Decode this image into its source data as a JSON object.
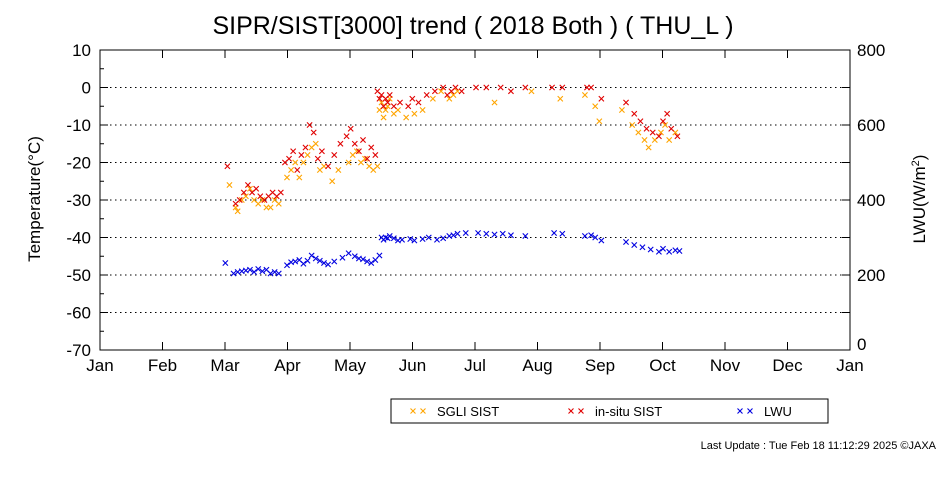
{
  "title": "SIPR/SIST[3000] trend ( 2018 Both ) ( THU_L )",
  "footer": "Last Update : Tue Feb 18 11:12:29 2025 ©JAXA",
  "colors": {
    "sgli": "#ffa500",
    "insitu": "#e00000",
    "lwu": "#0000e0",
    "grid": "#000000"
  },
  "chart_data": {
    "type": "scatter",
    "title": "SIPR/SIST[3000] trend ( 2018 Both ) ( THU_L )",
    "xlabel": "",
    "ylabel": "Temperature(°C)",
    "y2label_main": "LWU(W/m",
    "y2label_sup": "2",
    "y2label_end": ")",
    "ylim": [
      -70,
      10
    ],
    "y2lim": [
      0,
      800
    ],
    "xlim": [
      "2018-01-01",
      "2019-01-01"
    ],
    "x_ticks": [
      "Jan",
      "Feb",
      "Mar",
      "Apr",
      "May",
      "Jun",
      "Jul",
      "Aug",
      "Sep",
      "Oct",
      "Nov",
      "Dec",
      "Jan"
    ],
    "y_ticks": [
      10,
      0,
      -10,
      -20,
      -30,
      -40,
      -50,
      -60,
      -70
    ],
    "y2_ticks": [
      800,
      600,
      400,
      200,
      0
    ],
    "grid": "horizontal dotted",
    "legend": {
      "placement": "below",
      "entries": [
        "SGLI SIST",
        "in-situ SIST",
        "LWU"
      ]
    },
    "series": [
      {
        "name": "SGLI SIST",
        "axis": "left",
        "marker": "x",
        "points": [
          [
            "2018-03-05",
            -26
          ],
          [
            "2018-03-08",
            -32
          ],
          [
            "2018-03-09",
            -33
          ],
          [
            "2018-03-11",
            -30
          ],
          [
            "2018-03-13",
            -29
          ],
          [
            "2018-03-15",
            -27
          ],
          [
            "2018-03-17",
            -30
          ],
          [
            "2018-03-19",
            -31
          ],
          [
            "2018-03-21",
            -30
          ],
          [
            "2018-03-23",
            -32
          ],
          [
            "2018-03-25",
            -32
          ],
          [
            "2018-03-27",
            -30
          ],
          [
            "2018-03-29",
            -31
          ],
          [
            "2018-04-02",
            -24
          ],
          [
            "2018-04-04",
            -22
          ],
          [
            "2018-04-06",
            -20
          ],
          [
            "2018-04-08",
            -24
          ],
          [
            "2018-04-10",
            -20
          ],
          [
            "2018-04-12",
            -18
          ],
          [
            "2018-04-14",
            -16
          ],
          [
            "2018-04-16",
            -15
          ],
          [
            "2018-04-18",
            -22
          ],
          [
            "2018-04-20",
            -21
          ],
          [
            "2018-04-24",
            -25
          ],
          [
            "2018-04-27",
            -22
          ],
          [
            "2018-05-02",
            -20
          ],
          [
            "2018-05-04",
            -18
          ],
          [
            "2018-05-06",
            -17
          ],
          [
            "2018-05-08",
            -20
          ],
          [
            "2018-05-10",
            -19
          ],
          [
            "2018-05-12",
            -21
          ],
          [
            "2018-05-14",
            -22
          ],
          [
            "2018-05-16",
            -21
          ],
          [
            "2018-05-17",
            -6
          ],
          [
            "2018-05-18",
            -4
          ],
          [
            "2018-05-19",
            -8
          ],
          [
            "2018-05-20",
            -6
          ],
          [
            "2018-05-21",
            -5
          ],
          [
            "2018-05-22",
            -3
          ],
          [
            "2018-05-24",
            -7
          ],
          [
            "2018-05-26",
            -6
          ],
          [
            "2018-05-30",
            -8
          ],
          [
            "2018-06-03",
            -7
          ],
          [
            "2018-06-07",
            -6
          ],
          [
            "2018-06-12",
            -3
          ],
          [
            "2018-06-16",
            -1
          ],
          [
            "2018-06-20",
            -3
          ],
          [
            "2018-06-22",
            -2
          ],
          [
            "2018-06-24",
            -1
          ],
          [
            "2018-07-12",
            -4
          ],
          [
            "2018-07-30",
            -1
          ],
          [
            "2018-08-13",
            -3
          ],
          [
            "2018-08-25",
            -2
          ],
          [
            "2018-08-30",
            -5
          ],
          [
            "2018-09-01",
            -9
          ],
          [
            "2018-09-12",
            -6
          ],
          [
            "2018-09-17",
            -10
          ],
          [
            "2018-09-20",
            -12
          ],
          [
            "2018-09-23",
            -14
          ],
          [
            "2018-09-25",
            -16
          ],
          [
            "2018-09-28",
            -14
          ],
          [
            "2018-10-01",
            -12
          ],
          [
            "2018-10-03",
            -10
          ],
          [
            "2018-10-05",
            -14
          ],
          [
            "2018-10-08",
            -12
          ]
        ]
      },
      {
        "name": "in-situ SIST",
        "axis": "left",
        "marker": "x",
        "points": [
          [
            "2018-03-04",
            -21
          ],
          [
            "2018-03-08",
            -31
          ],
          [
            "2018-03-10",
            -30
          ],
          [
            "2018-03-12",
            -28
          ],
          [
            "2018-03-14",
            -26
          ],
          [
            "2018-03-16",
            -28
          ],
          [
            "2018-03-18",
            -27
          ],
          [
            "2018-03-20",
            -29
          ],
          [
            "2018-03-22",
            -30
          ],
          [
            "2018-03-24",
            -29
          ],
          [
            "2018-03-26",
            -28
          ],
          [
            "2018-03-28",
            -29
          ],
          [
            "2018-03-30",
            -28
          ],
          [
            "2018-04-01",
            -20
          ],
          [
            "2018-04-03",
            -19
          ],
          [
            "2018-04-05",
            -17
          ],
          [
            "2018-04-07",
            -22
          ],
          [
            "2018-04-09",
            -18
          ],
          [
            "2018-04-11",
            -16
          ],
          [
            "2018-04-13",
            -10
          ],
          [
            "2018-04-15",
            -12
          ],
          [
            "2018-04-17",
            -19
          ],
          [
            "2018-04-19",
            -17
          ],
          [
            "2018-04-22",
            -21
          ],
          [
            "2018-04-25",
            -18
          ],
          [
            "2018-04-28",
            -15
          ],
          [
            "2018-05-01",
            -13
          ],
          [
            "2018-05-03",
            -11
          ],
          [
            "2018-05-05",
            -15
          ],
          [
            "2018-05-07",
            -17
          ],
          [
            "2018-05-09",
            -14
          ],
          [
            "2018-05-11",
            -19
          ],
          [
            "2018-05-13",
            -16
          ],
          [
            "2018-05-15",
            -18
          ],
          [
            "2018-05-16",
            -1
          ],
          [
            "2018-05-17",
            -3
          ],
          [
            "2018-05-18",
            -2
          ],
          [
            "2018-05-19",
            -5
          ],
          [
            "2018-05-20",
            -3
          ],
          [
            "2018-05-21",
            -4
          ],
          [
            "2018-05-22",
            -2
          ],
          [
            "2018-05-24",
            -5
          ],
          [
            "2018-05-27",
            -4
          ],
          [
            "2018-05-31",
            -5
          ],
          [
            "2018-06-02",
            -3
          ],
          [
            "2018-06-05",
            -4
          ],
          [
            "2018-06-09",
            -2
          ],
          [
            "2018-06-13",
            -1
          ],
          [
            "2018-06-17",
            0
          ],
          [
            "2018-06-19",
            -2
          ],
          [
            "2018-06-21",
            -1
          ],
          [
            "2018-06-23",
            0
          ],
          [
            "2018-06-26",
            -1
          ],
          [
            "2018-07-03",
            0
          ],
          [
            "2018-07-08",
            0
          ],
          [
            "2018-07-15",
            0
          ],
          [
            "2018-07-20",
            -1
          ],
          [
            "2018-07-27",
            0
          ],
          [
            "2018-08-09",
            0
          ],
          [
            "2018-08-14",
            0
          ],
          [
            "2018-08-26",
            0
          ],
          [
            "2018-08-28",
            0
          ],
          [
            "2018-09-02",
            -3
          ],
          [
            "2018-09-14",
            -4
          ],
          [
            "2018-09-18",
            -7
          ],
          [
            "2018-09-21",
            -9
          ],
          [
            "2018-09-24",
            -11
          ],
          [
            "2018-09-27",
            -12
          ],
          [
            "2018-09-30",
            -13
          ],
          [
            "2018-10-02",
            -9
          ],
          [
            "2018-10-04",
            -7
          ],
          [
            "2018-10-06",
            -11
          ],
          [
            "2018-10-09",
            -13
          ]
        ]
      },
      {
        "name": "LWU",
        "axis": "right",
        "marker": "x",
        "points": [
          [
            "2018-03-03",
            232
          ],
          [
            "2018-03-07",
            204
          ],
          [
            "2018-03-09",
            208
          ],
          [
            "2018-03-11",
            210
          ],
          [
            "2018-03-13",
            212
          ],
          [
            "2018-03-15",
            214
          ],
          [
            "2018-03-17",
            208
          ],
          [
            "2018-03-19",
            216
          ],
          [
            "2018-03-21",
            210
          ],
          [
            "2018-03-23",
            214
          ],
          [
            "2018-03-25",
            204
          ],
          [
            "2018-03-27",
            208
          ],
          [
            "2018-03-29",
            204
          ],
          [
            "2018-04-02",
            226
          ],
          [
            "2018-04-04",
            234
          ],
          [
            "2018-04-06",
            236
          ],
          [
            "2018-04-08",
            240
          ],
          [
            "2018-04-10",
            230
          ],
          [
            "2018-04-12",
            238
          ],
          [
            "2018-04-14",
            252
          ],
          [
            "2018-04-16",
            244
          ],
          [
            "2018-04-18",
            238
          ],
          [
            "2018-04-20",
            232
          ],
          [
            "2018-04-22",
            228
          ],
          [
            "2018-04-25",
            236
          ],
          [
            "2018-04-29",
            246
          ],
          [
            "2018-05-02",
            258
          ],
          [
            "2018-05-05",
            250
          ],
          [
            "2018-05-07",
            244
          ],
          [
            "2018-05-09",
            242
          ],
          [
            "2018-05-11",
            236
          ],
          [
            "2018-05-13",
            232
          ],
          [
            "2018-05-15",
            240
          ],
          [
            "2018-05-17",
            252
          ],
          [
            "2018-05-18",
            300
          ],
          [
            "2018-05-19",
            294
          ],
          [
            "2018-05-20",
            300
          ],
          [
            "2018-05-21",
            298
          ],
          [
            "2018-05-22",
            304
          ],
          [
            "2018-05-24",
            298
          ],
          [
            "2018-05-26",
            292
          ],
          [
            "2018-05-28",
            294
          ],
          [
            "2018-06-01",
            296
          ],
          [
            "2018-06-03",
            292
          ],
          [
            "2018-06-07",
            296
          ],
          [
            "2018-06-10",
            300
          ],
          [
            "2018-06-14",
            294
          ],
          [
            "2018-06-17",
            298
          ],
          [
            "2018-06-20",
            304
          ],
          [
            "2018-06-22",
            306
          ],
          [
            "2018-06-24",
            310
          ],
          [
            "2018-06-28",
            312
          ],
          [
            "2018-07-04",
            312
          ],
          [
            "2018-07-08",
            310
          ],
          [
            "2018-07-12",
            308
          ],
          [
            "2018-07-16",
            310
          ],
          [
            "2018-07-20",
            306
          ],
          [
            "2018-07-27",
            304
          ],
          [
            "2018-08-10",
            312
          ],
          [
            "2018-08-14",
            310
          ],
          [
            "2018-08-25",
            304
          ],
          [
            "2018-08-28",
            306
          ],
          [
            "2018-08-30",
            300
          ],
          [
            "2018-09-02",
            292
          ],
          [
            "2018-09-14",
            288
          ],
          [
            "2018-09-18",
            280
          ],
          [
            "2018-09-22",
            274
          ],
          [
            "2018-09-26",
            268
          ],
          [
            "2018-09-30",
            262
          ],
          [
            "2018-10-02",
            270
          ],
          [
            "2018-10-05",
            262
          ],
          [
            "2018-10-08",
            266
          ],
          [
            "2018-10-10",
            264
          ]
        ]
      }
    ]
  }
}
